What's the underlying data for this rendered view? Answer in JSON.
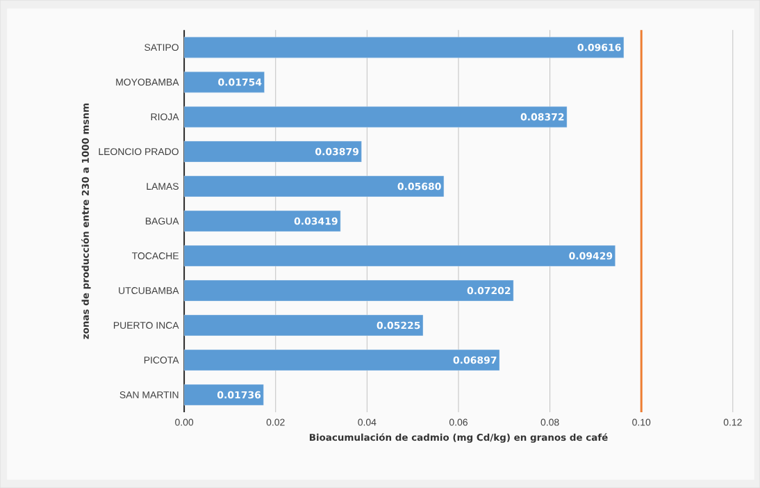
{
  "chart_data": {
    "type": "bar",
    "orientation": "horizontal",
    "categories": [
      "SATIPO",
      "MOYOBAMBA",
      "RIOJA",
      "LEONCIO PRADO",
      "LAMAS",
      "BAGUA",
      "TOCACHE",
      "UTCUBAMBA",
      "PUERTO INCA",
      "PICOTA",
      "SAN MARTIN"
    ],
    "values": [
      0.09616,
      0.01754,
      0.08372,
      0.03879,
      0.0568,
      0.03419,
      0.09429,
      0.07202,
      0.05225,
      0.06897,
      0.01736
    ],
    "value_labels": [
      "0.09616",
      "0.01754",
      "0.08372",
      "0.03879",
      "0.05680",
      "0.03419",
      "0.09429",
      "0.07202",
      "0.05225",
      "0.06897",
      "0.01736"
    ],
    "color": "#5b9bd5",
    "xlim": [
      0,
      0.12
    ],
    "xticks": [
      {
        "value": 0,
        "label": "0.00"
      },
      {
        "value": 0.02,
        "label": "0.02"
      },
      {
        "value": 0.04,
        "label": "0.04"
      },
      {
        "value": 0.06,
        "label": "0.06"
      },
      {
        "value": 0.08,
        "label": "0.08"
      },
      {
        "value": 0.1,
        "label": "0.10"
      },
      {
        "value": 0.12,
        "label": "0.12"
      }
    ],
    "grid": "x",
    "xlabel": "Bioacumulación de  cadmio (mg Cd/kg) en granos de café",
    "ylabel": "zonas de producción entre 230 a 1000 msnm",
    "ref_lines": [
      {
        "axis": "x",
        "value": 0.1,
        "color": "#ed7d31"
      }
    ]
  }
}
